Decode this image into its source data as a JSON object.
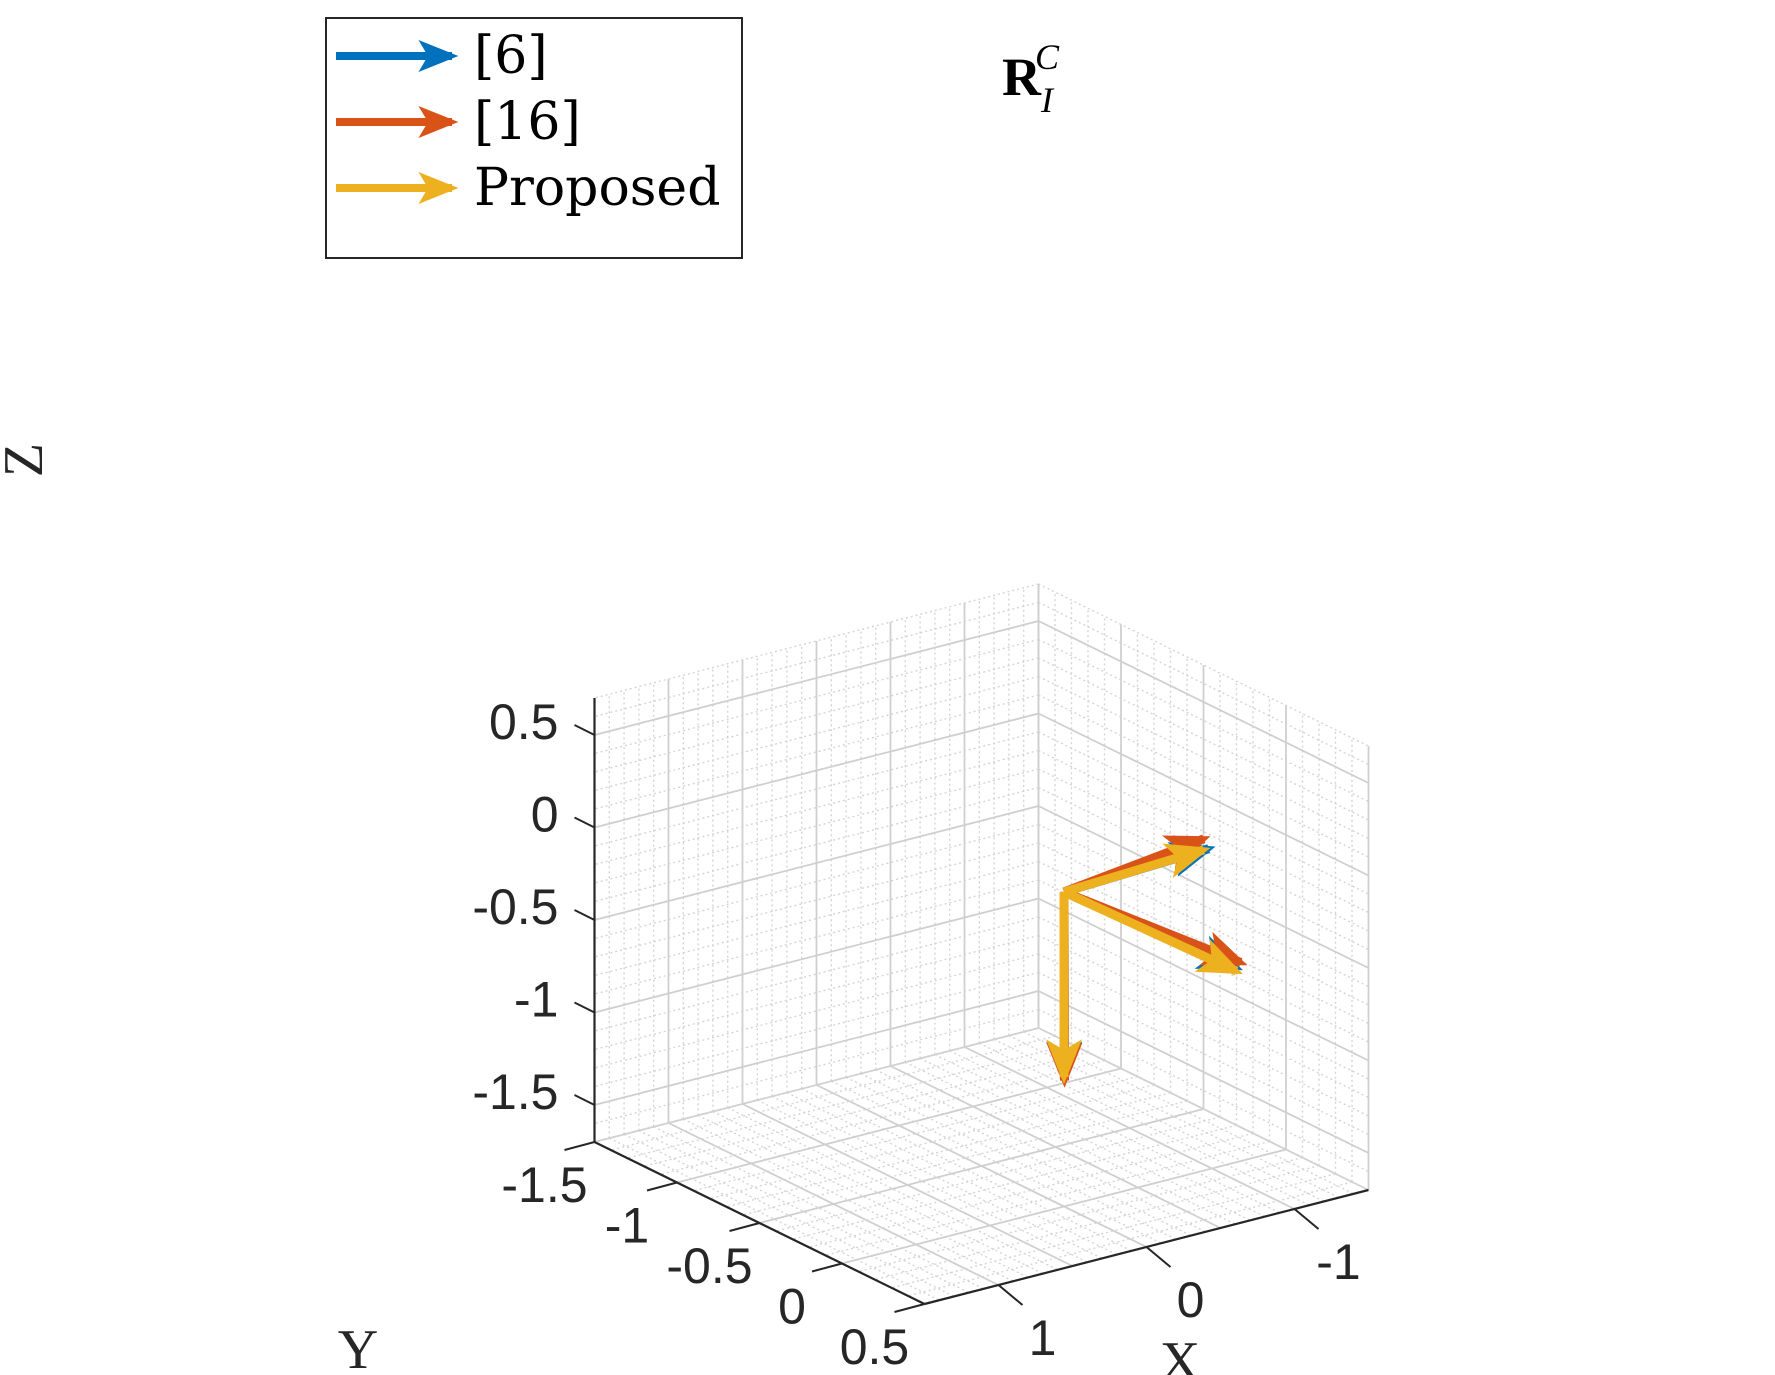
{
  "chart_data": {
    "type": "line",
    "projection": "3d",
    "title": {
      "base": "R",
      "sub": "I",
      "sup": "C"
    },
    "xlabel": "X",
    "ylabel": "Y",
    "zlabel": "Z",
    "xlim": [
      -1.5,
      1.5
    ],
    "ylim": [
      -1.5,
      0.5
    ],
    "zlim": [
      -1.7,
      0.7
    ],
    "x_ticks": [
      "-1",
      "0",
      "1"
    ],
    "y_ticks": [
      "-1.5",
      "-1",
      "-0.5",
      "0",
      "0.5"
    ],
    "z_ticks": [
      "0.5",
      "0",
      "-0.5",
      "-1",
      "-1.5"
    ],
    "grid": true,
    "minor_grid": true,
    "legend": {
      "position": "top-left"
    },
    "colors": {
      "blue": "#0072BD",
      "orange": "#D95319",
      "yellow": "#EDB120"
    },
    "series": [
      {
        "name": "[6]",
        "color": "#0072BD",
        "origin": [
          0,
          0,
          0
        ],
        "vectors": [
          [
            -0.05,
            1.0,
            0.02
          ],
          [
            -1.0,
            -0.02,
            0.02
          ],
          [
            0.02,
            0.02,
            -1.0
          ]
        ]
      },
      {
        "name": "[16]",
        "color": "#D95319",
        "origin": [
          0,
          0,
          0
        ],
        "vectors": [
          [
            -0.08,
            1.0,
            0.04
          ],
          [
            -1.0,
            -0.05,
            0.06
          ],
          [
            0.03,
            0.03,
            -1.0
          ]
        ]
      },
      {
        "name": "Proposed",
        "color": "#EDB120",
        "origin": [
          0,
          0,
          0
        ],
        "vectors": [
          [
            -0.05,
            1.0,
            0.0
          ],
          [
            -1.0,
            -0.05,
            0.0
          ],
          [
            0.0,
            0.0,
            -1.0
          ]
        ]
      }
    ]
  }
}
